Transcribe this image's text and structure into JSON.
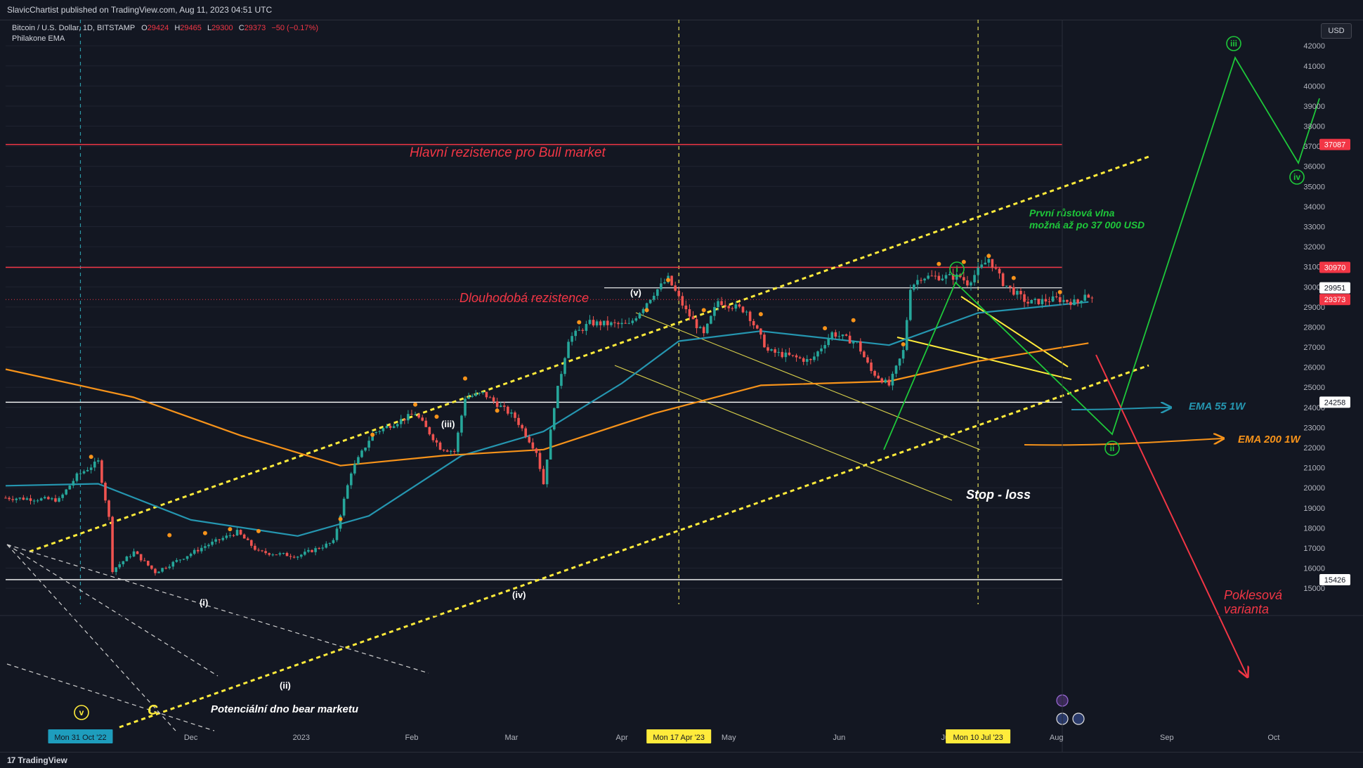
{
  "header": {
    "publisher": "SlavicChartist published on TradingView.com, Aug 11, 2023 04:51 UTC"
  },
  "legend": {
    "symbol": "Bitcoin / U.S. Dollar, 1D, BITSTAMP",
    "o_label": "O",
    "o_value": "29424",
    "h_label": "H",
    "h_value": "29465",
    "l_label": "L",
    "l_value": "29300",
    "c_label": "C",
    "c_value": "29373",
    "change": "−50 (−0.17%)",
    "indicator": "Philakone EMA"
  },
  "currency": "USD",
  "footer": {
    "brand": "TradingView"
  },
  "colors": {
    "background": "#131722",
    "bull": "#26a69a",
    "bear": "#ef5350",
    "ema55": "#2596b0",
    "ema200": "#f7931a",
    "channel": "#ffeb3b",
    "resistance": "#f23645",
    "wave_green": "#1ec83a"
  },
  "chart_data": {
    "type": "candlestick",
    "y_axis_ticks": [
      15000,
      16000,
      17000,
      18000,
      19000,
      20000,
      21000,
      22000,
      23000,
      24000,
      25000,
      26000,
      27000,
      28000,
      29000,
      30000,
      31000,
      32000,
      33000,
      34000,
      35000,
      36000,
      37000,
      38000,
      39000,
      40000,
      41000,
      42000
    ],
    "ylim": [
      14200,
      43300
    ],
    "x_axis_labels": [
      {
        "date": "2022-10-31",
        "label": "Mon 31 Oct '22",
        "highlight": true
      },
      {
        "date": "2022-12-01",
        "label": "Dec"
      },
      {
        "date": "2023-01-01",
        "label": "2023"
      },
      {
        "date": "2023-02-01",
        "label": "Feb"
      },
      {
        "date": "2023-03-01",
        "label": "Mar"
      },
      {
        "date": "2023-04-01",
        "label": "Apr"
      },
      {
        "date": "2023-04-17",
        "label": "Mon 17 Apr '23",
        "highlight": true
      },
      {
        "date": "2023-05-01",
        "label": "May"
      },
      {
        "date": "2023-06-01",
        "label": "Jun"
      },
      {
        "date": "2023-07-01",
        "label": "Jul"
      },
      {
        "date": "2023-07-10",
        "label": "Mon 10 Jul '23",
        "highlight": true
      },
      {
        "date": "2023-08-01",
        "label": "Aug"
      },
      {
        "date": "2023-09-01",
        "label": "Sep"
      },
      {
        "date": "2023-10-01",
        "label": "Oct"
      }
    ],
    "price_levels": [
      {
        "value": 37087,
        "label": "37087",
        "style": "resistance"
      },
      {
        "value": 30970,
        "label": "30970",
        "style": "resistance"
      },
      {
        "value": 29951,
        "label": "29951",
        "style": "support"
      },
      {
        "value": 29373,
        "label": "29373",
        "style": "last"
      },
      {
        "value": 24258,
        "label": "24258",
        "style": "support"
      },
      {
        "value": 15426,
        "label": "15426",
        "style": "support"
      }
    ],
    "price_path": [
      {
        "date": "2022-10-10",
        "price": 19500
      },
      {
        "date": "2022-10-25",
        "price": 19400
      },
      {
        "date": "2022-10-30",
        "price": 20600
      },
      {
        "date": "2022-11-05",
        "price": 21300
      },
      {
        "date": "2022-11-08",
        "price": 18500
      },
      {
        "date": "2022-11-09",
        "price": 15900
      },
      {
        "date": "2022-11-15",
        "price": 16800
      },
      {
        "date": "2022-11-21",
        "price": 15800
      },
      {
        "date": "2022-12-05",
        "price": 17100
      },
      {
        "date": "2022-12-14",
        "price": 17800
      },
      {
        "date": "2022-12-20",
        "price": 16800
      },
      {
        "date": "2022-12-31",
        "price": 16600
      },
      {
        "date": "2023-01-10",
        "price": 17300
      },
      {
        "date": "2023-01-15",
        "price": 20800
      },
      {
        "date": "2023-01-21",
        "price": 22700
      },
      {
        "date": "2023-02-02",
        "price": 23700
      },
      {
        "date": "2023-02-09",
        "price": 22000
      },
      {
        "date": "2023-02-13",
        "price": 21800
      },
      {
        "date": "2023-02-16",
        "price": 24500
      },
      {
        "date": "2023-02-21",
        "price": 24700
      },
      {
        "date": "2023-03-02",
        "price": 23500
      },
      {
        "date": "2023-03-08",
        "price": 21800
      },
      {
        "date": "2023-03-10",
        "price": 20200
      },
      {
        "date": "2023-03-13",
        "price": 24100
      },
      {
        "date": "2023-03-17",
        "price": 27400
      },
      {
        "date": "2023-03-23",
        "price": 28200
      },
      {
        "date": "2023-04-03",
        "price": 28100
      },
      {
        "date": "2023-04-10",
        "price": 29700
      },
      {
        "date": "2023-04-14",
        "price": 30400
      },
      {
        "date": "2023-04-19",
        "price": 28800
      },
      {
        "date": "2023-04-24",
        "price": 27600
      },
      {
        "date": "2023-04-28",
        "price": 29300
      },
      {
        "date": "2023-05-06",
        "price": 28800
      },
      {
        "date": "2023-05-12",
        "price": 26800
      },
      {
        "date": "2023-05-24",
        "price": 26300
      },
      {
        "date": "2023-05-30",
        "price": 27700
      },
      {
        "date": "2023-06-06",
        "price": 27200
      },
      {
        "date": "2023-06-10",
        "price": 25800
      },
      {
        "date": "2023-06-15",
        "price": 25100
      },
      {
        "date": "2023-06-19",
        "price": 26800
      },
      {
        "date": "2023-06-21",
        "price": 30000
      },
      {
        "date": "2023-06-24",
        "price": 30500
      },
      {
        "date": "2023-07-05",
        "price": 30500
      },
      {
        "date": "2023-07-07",
        "price": 30200
      },
      {
        "date": "2023-07-13",
        "price": 31400
      },
      {
        "date": "2023-07-17",
        "price": 30200
      },
      {
        "date": "2023-07-24",
        "price": 29200
      },
      {
        "date": "2023-08-01",
        "price": 29400
      },
      {
        "date": "2023-08-07",
        "price": 29200
      },
      {
        "date": "2023-08-09",
        "price": 29700
      },
      {
        "date": "2023-08-11",
        "price": 29373
      }
    ],
    "indicators": [
      {
        "name": "EMA 55 1W",
        "color": "#2596b0",
        "points": [
          {
            "date": "2022-10-10",
            "price": 20100
          },
          {
            "date": "2022-11-05",
            "price": 20200
          },
          {
            "date": "2022-12-01",
            "price": 18400
          },
          {
            "date": "2022-12-31",
            "price": 17600
          },
          {
            "date": "2023-01-20",
            "price": 18600
          },
          {
            "date": "2023-02-15",
            "price": 21600
          },
          {
            "date": "2023-03-10",
            "price": 22800
          },
          {
            "date": "2023-04-01",
            "price": 25200
          },
          {
            "date": "2023-04-17",
            "price": 27300
          },
          {
            "date": "2023-05-10",
            "price": 27800
          },
          {
            "date": "2023-06-15",
            "price": 27100
          },
          {
            "date": "2023-07-10",
            "price": 28700
          },
          {
            "date": "2023-08-10",
            "price": 29250
          }
        ]
      },
      {
        "name": "EMA 200 1W",
        "color": "#f7931a",
        "points": [
          {
            "date": "2022-10-10",
            "price": 25900
          },
          {
            "date": "2022-11-15",
            "price": 24500
          },
          {
            "date": "2022-12-15",
            "price": 22600
          },
          {
            "date": "2023-01-12",
            "price": 21100
          },
          {
            "date": "2023-02-10",
            "price": 21600
          },
          {
            "date": "2023-03-10",
            "price": 21900
          },
          {
            "date": "2023-04-10",
            "price": 23700
          },
          {
            "date": "2023-05-10",
            "price": 25100
          },
          {
            "date": "2023-06-15",
            "price": 25300
          },
          {
            "date": "2023-07-10",
            "price": 26300
          },
          {
            "date": "2023-08-10",
            "price": 27200
          }
        ]
      }
    ],
    "annotations": [
      {
        "text": "Hlavní rezistence pro Bull market",
        "color": "#f23645"
      },
      {
        "text": "Dlouhodobá rezistence",
        "color": "#f23645"
      },
      {
        "text": "První růstová vlna",
        "color": "#1ec83a"
      },
      {
        "text": "možná až po 37 000 USD",
        "color": "#1ec83a"
      },
      {
        "text": "EMA 55 1W",
        "color": "#2596b0"
      },
      {
        "text": "EMA 200 1W",
        "color": "#f7931a"
      },
      {
        "text": "Stop - loss",
        "color": "#ffffff"
      },
      {
        "text": "Poklesová",
        "color": "#f23645"
      },
      {
        "text": "varianta",
        "color": "#f23645"
      },
      {
        "text": "Potenciální dno bear marketu",
        "color": "#ffffff"
      }
    ],
    "wave_labels": [
      "(i)",
      "(ii)",
      "(iii)",
      "(iv)",
      "(v)",
      "C"
    ],
    "circled_wave_labels": [
      "v",
      "i",
      "ii",
      "iii",
      "iv"
    ]
  }
}
